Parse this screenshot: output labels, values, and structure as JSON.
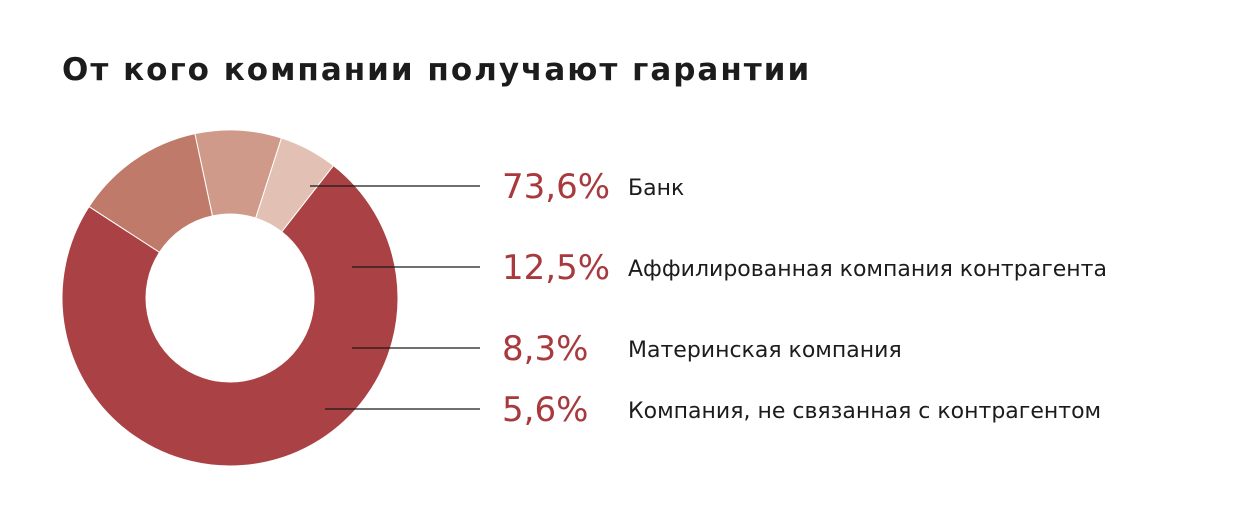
{
  "title": "От кого компании получают гарантии",
  "colors": {
    "accent": "#a8393d",
    "slices": [
      "#aa4245",
      "#bf7a6a",
      "#d09a8b",
      "#e2c0b3"
    ]
  },
  "chart_data": {
    "type": "pie",
    "style": "donut",
    "title": "От кого компании получают гарантии",
    "series": [
      {
        "labels": [
          "Банк",
          "Аффилированная компания контрагента",
          "Материнская компания",
          "Компания, не связанная с контрагентом"
        ],
        "values": [
          73.6,
          12.5,
          8.3,
          5.6
        ],
        "value_labels": [
          "73,6%",
          "12,5%",
          "8,3%",
          "5,6%"
        ]
      }
    ],
    "legend_position": "right"
  }
}
